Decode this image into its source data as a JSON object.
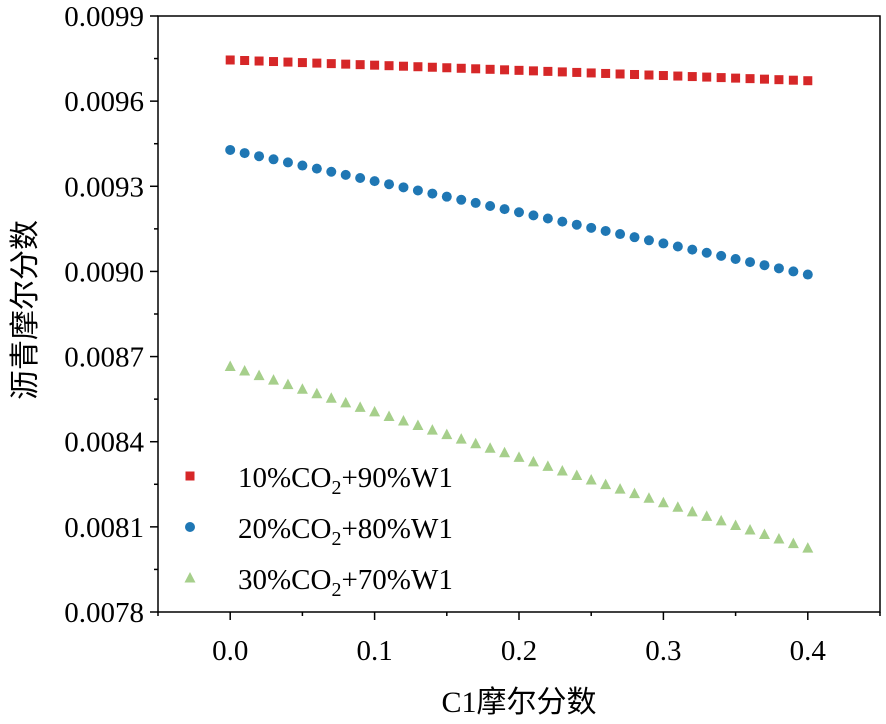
{
  "chart_data": {
    "type": "scatter",
    "title": "",
    "xlabel": "C1摩尔分数",
    "ylabel": "沥青摩尔分数",
    "xlim": [
      -0.05,
      0.45
    ],
    "ylim": [
      0.0078,
      0.0099
    ],
    "x_ticks": [
      0.0,
      0.1,
      0.2,
      0.3,
      0.4
    ],
    "x_tick_labels": [
      "0.0",
      "0.1",
      "0.2",
      "0.3",
      "0.4"
    ],
    "y_ticks": [
      0.0078,
      0.0081,
      0.0084,
      0.0087,
      0.009,
      0.0093,
      0.0096,
      0.0099
    ],
    "y_tick_labels": [
      "0.0078",
      "0.0081",
      "0.0084",
      "0.0087",
      "0.0090",
      "0.0093",
      "0.0096",
      "0.0099"
    ],
    "legend_position": "bottom-left",
    "x": [
      0.0,
      0.01,
      0.02,
      0.03,
      0.04,
      0.05,
      0.06,
      0.07,
      0.08,
      0.09,
      0.1,
      0.11,
      0.12,
      0.13,
      0.14,
      0.15,
      0.16,
      0.17,
      0.18,
      0.19,
      0.2,
      0.21,
      0.22,
      0.23,
      0.24,
      0.25,
      0.26,
      0.27,
      0.28,
      0.29,
      0.3,
      0.31,
      0.32,
      0.33,
      0.34,
      0.35,
      0.36,
      0.37,
      0.38,
      0.39,
      0.4
    ],
    "series": [
      {
        "name_main": "10%CO",
        "name_sub": "2",
        "name_tail": "+90%W1",
        "marker": "square",
        "color": "#d62728",
        "y_start": 0.009745,
        "y_end": 0.009672
      },
      {
        "name_main": "20%CO",
        "name_sub": "2",
        "name_tail": "+80%W1",
        "marker": "circle",
        "color": "#1f77b4",
        "y_start": 0.009428,
        "y_end": 0.008989
      },
      {
        "name_main": "30%CO",
        "name_sub": "2",
        "name_tail": "+70%W1",
        "marker": "triangle",
        "color": "#a6cf8b",
        "y_start": 0.008665,
        "y_end": 0.008025
      }
    ]
  }
}
